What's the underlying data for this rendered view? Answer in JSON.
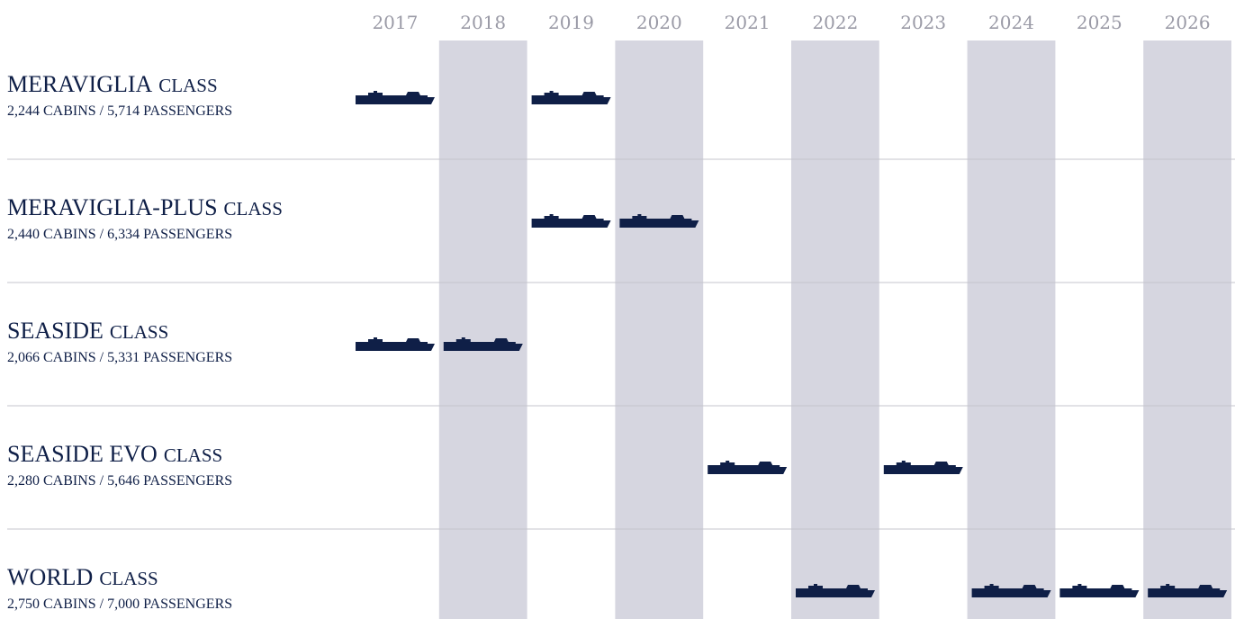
{
  "years": [
    "2017",
    "2018",
    "2019",
    "2020",
    "2021",
    "2022",
    "2023",
    "2024",
    "2025",
    "2026"
  ],
  "classes": [
    {
      "name": "MERAVIGLIA",
      "suffix": "CLASS",
      "specs": "2,244 CABINS / 5,714 PASSENGERS",
      "ships": [
        "2017",
        "2019"
      ]
    },
    {
      "name": "MERAVIGLIA-PLUS",
      "suffix": "CLASS",
      "specs": "2,440 CABINS / 6,334 PASSENGERS",
      "ships": [
        "2019",
        "2020"
      ]
    },
    {
      "name": "SEASIDE",
      "suffix": "CLASS",
      "specs": "2,066 CABINS / 5,331 PASSENGERS",
      "ships": [
        "2017",
        "2018"
      ]
    },
    {
      "name": "SEASIDE EVO",
      "suffix": "CLASS",
      "specs": "2,280 CABINS / 5,646 PASSENGERS",
      "ships": [
        "2021",
        "2023"
      ]
    },
    {
      "name": "WORLD",
      "suffix": "CLASS",
      "specs": "2,750 CABINS / 7,000 PASSENGERS",
      "ships": [
        "2022",
        "2024",
        "2025",
        "2026"
      ]
    }
  ]
}
